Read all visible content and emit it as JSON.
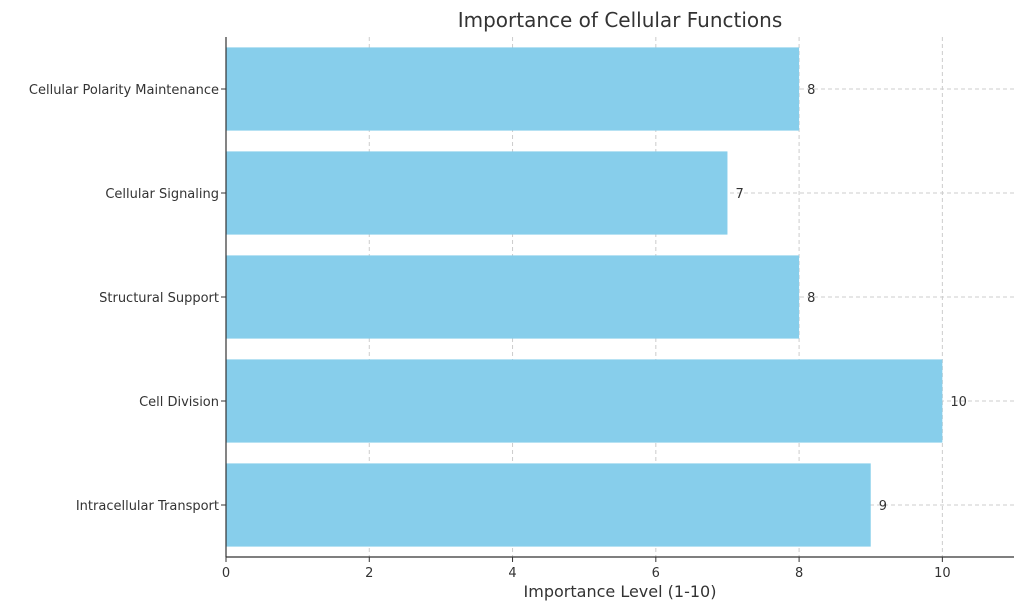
{
  "chart_data": {
    "type": "bar",
    "orientation": "horizontal",
    "title": "Importance of Cellular Functions",
    "xlabel": "Importance Level (1-10)",
    "ylabel": "",
    "categories": [
      "Intracellular Transport",
      "Cell Division",
      "Structural Support",
      "Cellular Signaling",
      "Cellular Polarity Maintenance"
    ],
    "values": [
      9,
      10,
      8,
      7,
      8
    ],
    "xlim": [
      0,
      11
    ],
    "xticks": [
      0,
      2,
      4,
      6,
      8,
      10
    ],
    "grid": true,
    "bar_color": "#87CEEB",
    "data_labels": true
  }
}
